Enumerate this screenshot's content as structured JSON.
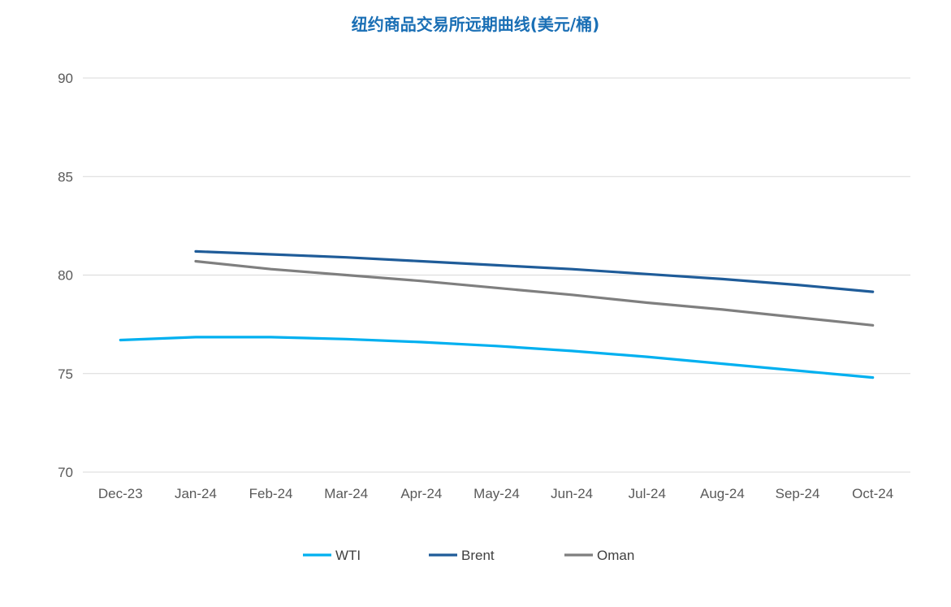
{
  "chart_data": {
    "type": "line",
    "title": "纽约商品交易所远期曲线(美元/桶)",
    "xlabel": "",
    "ylabel": "",
    "categories": [
      "Dec-23",
      "Jan-24",
      "Feb-24",
      "Mar-24",
      "Apr-24",
      "May-24",
      "Jun-24",
      "Jul-24",
      "Aug-24",
      "Sep-24",
      "Oct-24"
    ],
    "ylim": [
      70,
      90
    ],
    "yticks": [
      70,
      75,
      80,
      85,
      90
    ],
    "grid": true,
    "legend_position": "bottom",
    "series": [
      {
        "name": "WTI",
        "color": "#00b0f0",
        "values": [
          76.7,
          76.85,
          76.85,
          76.75,
          76.6,
          76.4,
          76.15,
          75.85,
          75.5,
          75.15,
          74.8
        ]
      },
      {
        "name": "Brent",
        "color": "#1f5c99",
        "values": [
          null,
          81.2,
          81.05,
          80.9,
          80.7,
          80.5,
          80.3,
          80.05,
          79.8,
          79.5,
          79.15
        ]
      },
      {
        "name": "Oman",
        "color": "#7f7f7f",
        "values": [
          null,
          80.7,
          80.3,
          80.0,
          79.7,
          79.35,
          79.0,
          78.6,
          78.25,
          77.85,
          77.45
        ]
      }
    ]
  }
}
